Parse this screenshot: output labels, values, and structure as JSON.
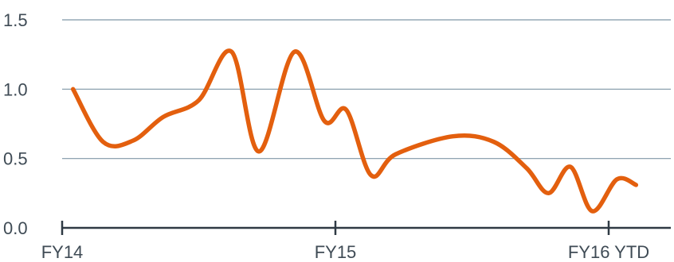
{
  "chart_data": {
    "type": "line",
    "title": "",
    "xlabel": "",
    "ylabel": "",
    "ylim": [
      0,
      1.5
    ],
    "y_ticks": [
      "0.0",
      "0.5",
      "1.0",
      "1.5"
    ],
    "y_tick_values": [
      0,
      0.5,
      1.0,
      1.5
    ],
    "x_ticks": [
      "FY14",
      "FY15",
      "FY16 YTD"
    ],
    "x_tick_values": [
      0,
      1,
      2
    ],
    "xlim": [
      0,
      2.1
    ],
    "grid": true,
    "series": [
      {
        "color": "#e35f0e",
        "points": [
          [
            0.04,
            1.0
          ],
          [
            0.15,
            0.62
          ],
          [
            0.26,
            0.63
          ],
          [
            0.37,
            0.8
          ],
          [
            0.5,
            0.92
          ],
          [
            0.62,
            1.27
          ],
          [
            0.72,
            0.55
          ],
          [
            0.85,
            1.27
          ],
          [
            0.96,
            0.77
          ],
          [
            1.04,
            0.85
          ],
          [
            1.13,
            0.38
          ],
          [
            1.22,
            0.53
          ],
          [
            1.43,
            0.66
          ],
          [
            1.58,
            0.62
          ],
          [
            1.7,
            0.43
          ],
          [
            1.78,
            0.25
          ],
          [
            1.86,
            0.44
          ],
          [
            1.94,
            0.12
          ],
          [
            2.03,
            0.35
          ],
          [
            2.1,
            0.31
          ]
        ]
      }
    ]
  },
  "colors": {
    "line": "#e35f0e",
    "grid": "#7f96a6",
    "axis": "#2f3a44",
    "text": "#3f4b55"
  }
}
